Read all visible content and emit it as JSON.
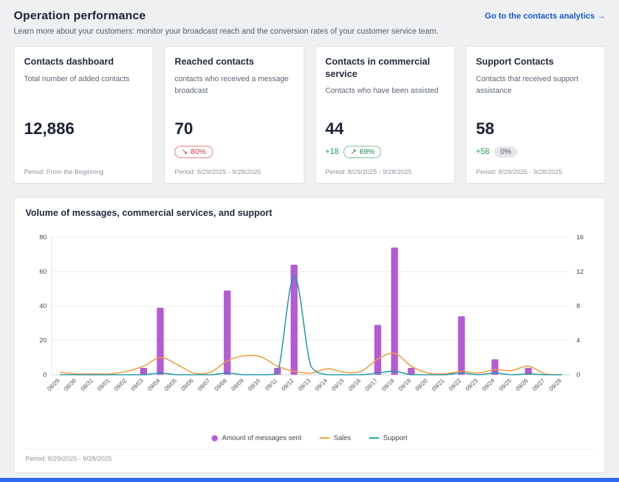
{
  "header": {
    "title": "Operation performance",
    "subtitle": "Learn more about your customers: monitor your broadcast reach and the conversion rates of your customer service team.",
    "link": "Go to the contacts analytics →"
  },
  "cards": [
    {
      "title": "Contacts dashboard",
      "description": "Total number of added contacts",
      "value": "12,886",
      "period": "Period: From the Beginning"
    },
    {
      "title": "Reached contacts",
      "description": "contacts who received a message broadcast",
      "value": "70",
      "badge_arrow": "↘",
      "badge_text": "80%",
      "period": "Period: 8/29/2025 - 9/28/2025"
    },
    {
      "title": "Contacts in commercial service",
      "description": "Contacts who have been assisted",
      "value": "44",
      "delta": "+18",
      "badge_arrow": "↗",
      "badge_text": "69%",
      "period": "Period: 8/29/2025 - 9/28/2025"
    },
    {
      "title": "Support Contacts",
      "description": "Contacts that received support assistance",
      "value": "58",
      "delta": "+58",
      "badge_text": "0%",
      "period": "Period: 8/29/2025 - 9/28/2025"
    }
  ],
  "chart_card": {
    "footer": "Period: 8/29/2025 - 9/28/2025"
  },
  "chart_data": {
    "type": "combo-bar-line",
    "title": "Volume of messages, commercial services, and support",
    "categories": [
      "08/29",
      "08/30",
      "08/31",
      "09/01",
      "09/02",
      "09/03",
      "09/04",
      "09/05",
      "09/06",
      "09/07",
      "09/08",
      "09/09",
      "09/10",
      "09/11",
      "09/12",
      "09/13",
      "09/14",
      "09/15",
      "09/16",
      "09/17",
      "09/18",
      "09/19",
      "09/20",
      "09/21",
      "09/22",
      "09/23",
      "09/24",
      "09/25",
      "09/26",
      "09/27",
      "09/28"
    ],
    "left_axis": {
      "max": 80,
      "ticks": [
        0,
        20,
        40,
        60,
        80
      ]
    },
    "right_axis": {
      "max": 16,
      "ticks": [
        0,
        4,
        8,
        12,
        16
      ]
    },
    "grid": true,
    "legend_position": "bottom",
    "series": [
      {
        "name": "Amount of messages sent",
        "type": "bar",
        "axis": "left",
        "color": "#b55bd3",
        "values": [
          0,
          0,
          0,
          0,
          0,
          4,
          39,
          0,
          0,
          0,
          49,
          0,
          0,
          4,
          64,
          0,
          0,
          0,
          0,
          29,
          74,
          4,
          0,
          0,
          34,
          0,
          9,
          0,
          4,
          0,
          0
        ]
      },
      {
        "name": "Sales",
        "type": "line",
        "axis": "right",
        "color": "#f29a3a",
        "values": [
          0.3,
          0.1,
          0.1,
          0.1,
          0.4,
          1,
          2,
          1.2,
          0.2,
          0.3,
          1.6,
          2.2,
          2.1,
          1,
          0.4,
          0.2,
          0.7,
          0.3,
          0.4,
          1.8,
          2.5,
          1,
          0.2,
          0.1,
          0.4,
          0.2,
          0.6,
          0.5,
          1,
          0.1,
          0
        ]
      },
      {
        "name": "Support",
        "type": "line",
        "axis": "right",
        "color": "#1a9ba8",
        "values": [
          0,
          0,
          0,
          0,
          0,
          0,
          0.2,
          0,
          0,
          0,
          0.2,
          0,
          0,
          0.1,
          11.5,
          1,
          0,
          0,
          0,
          0.2,
          0.4,
          0,
          0,
          0,
          0.2,
          0,
          0.2,
          0,
          0.1,
          0,
          0
        ]
      }
    ]
  },
  "colors": {
    "accent_blue": "#1857d6",
    "bottom_bar_blue": "#2e6bf0",
    "bar_purple": "#b55bd3",
    "line_orange": "#f29a3a",
    "line_teal": "#1a9ba8",
    "negative_red": "#d7373f",
    "positive_green": "#17a04e",
    "neutral_gray": "#e4e6e9"
  }
}
